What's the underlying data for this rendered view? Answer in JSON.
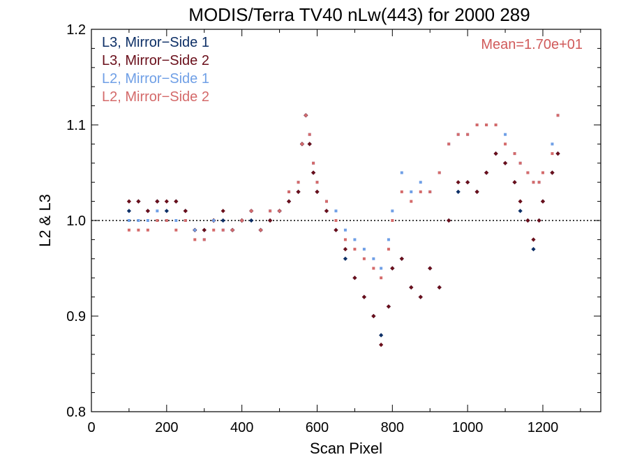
{
  "chart_data": {
    "type": "scatter",
    "title": "MODIS/Terra TV40 nLw(443) for 2000 289",
    "xlabel": "Scan Pixel",
    "ylabel": "L2 & L3",
    "xlim": [
      0,
      1354
    ],
    "ylim": [
      0.8,
      1.2
    ],
    "x_ticks": [
      "0",
      "200",
      "400",
      "600",
      "800",
      "1000",
      "1200"
    ],
    "y_ticks": [
      "0.8",
      "0.9",
      "1.0",
      "1.1",
      "1.2"
    ],
    "reference_line": 1.0,
    "annotation": "Mean=1.70e+01",
    "annotation_color": "#d05a5a",
    "legend_position": "top-left",
    "series": [
      {
        "name": "L3, Mirror−Side 1",
        "color": "#0d2f66",
        "x": [
          100,
          125,
          150,
          175,
          200,
          225,
          250,
          275,
          300,
          325,
          350,
          375,
          400,
          425,
          450,
          475,
          500,
          525,
          550,
          560,
          570,
          580,
          590,
          600,
          625,
          650,
          675,
          700,
          725,
          750,
          770,
          790,
          800,
          825,
          850,
          875,
          900,
          925,
          950,
          975,
          1000,
          1025,
          1050,
          1075,
          1100,
          1125,
          1140,
          1160,
          1175,
          1190,
          1200,
          1225,
          1240
        ],
        "y": [
          1.01,
          1.02,
          1.01,
          1.02,
          1.01,
          1.02,
          1.01,
          0.99,
          0.99,
          1.0,
          1.0,
          0.99,
          1.0,
          1.0,
          0.99,
          1.0,
          1.01,
          1.02,
          1.03,
          1.08,
          1.11,
          1.08,
          1.05,
          1.03,
          1.01,
          0.99,
          0.96,
          0.94,
          0.92,
          0.9,
          0.88,
          0.91,
          0.95,
          0.96,
          0.93,
          0.92,
          0.95,
          0.93,
          1.0,
          1.03,
          1.04,
          1.03,
          1.05,
          1.07,
          1.06,
          1.04,
          1.01,
          1.0,
          0.97,
          1.0,
          1.02,
          1.05,
          1.07
        ]
      },
      {
        "name": "L3, Mirror−Side 2",
        "color": "#6a0f1b",
        "x": [
          100,
          125,
          150,
          175,
          200,
          225,
          250,
          275,
          300,
          325,
          350,
          375,
          400,
          425,
          450,
          475,
          500,
          525,
          550,
          560,
          570,
          580,
          590,
          600,
          625,
          650,
          675,
          700,
          725,
          750,
          770,
          790,
          800,
          825,
          850,
          875,
          900,
          925,
          950,
          975,
          1000,
          1025,
          1050,
          1075,
          1100,
          1125,
          1140,
          1160,
          1175,
          1190,
          1200,
          1225,
          1240
        ],
        "y": [
          1.02,
          1.02,
          1.01,
          1.02,
          1.02,
          1.02,
          1.01,
          0.99,
          0.99,
          1.0,
          1.01,
          0.99,
          1.0,
          1.01,
          0.99,
          1.0,
          1.01,
          1.02,
          1.03,
          1.08,
          1.11,
          1.08,
          1.05,
          1.03,
          1.01,
          0.99,
          0.97,
          0.94,
          0.92,
          0.9,
          0.87,
          0.91,
          0.95,
          0.96,
          0.93,
          0.92,
          0.95,
          0.93,
          1.0,
          1.04,
          1.04,
          1.03,
          1.05,
          1.07,
          1.06,
          1.04,
          1.02,
          1.0,
          0.98,
          1.0,
          1.02,
          1.05,
          1.07
        ]
      },
      {
        "name": "L2, Mirror−Side 1",
        "color": "#6f9fe6",
        "x": [
          100,
          125,
          150,
          175,
          200,
          225,
          250,
          275,
          300,
          325,
          350,
          375,
          400,
          425,
          450,
          475,
          500,
          525,
          550,
          560,
          570,
          580,
          590,
          600,
          625,
          650,
          675,
          700,
          725,
          750,
          770,
          790,
          800,
          825,
          850,
          875,
          900,
          925,
          950,
          975,
          1000,
          1025,
          1050,
          1075,
          1100,
          1125,
          1140,
          1160,
          1175,
          1190,
          1200,
          1225,
          1240
        ],
        "y": [
          1.0,
          1.0,
          1.0,
          1.01,
          1.0,
          1.0,
          1.0,
          0.99,
          0.98,
          1.0,
          0.99,
          0.99,
          1.0,
          1.01,
          0.99,
          1.01,
          1.01,
          1.03,
          1.04,
          1.08,
          1.11,
          1.09,
          1.06,
          1.04,
          1.02,
          1.01,
          0.99,
          0.98,
          0.97,
          0.96,
          0.95,
          0.98,
          1.01,
          1.05,
          1.03,
          1.04,
          1.03,
          1.05,
          1.08,
          1.09,
          1.09,
          1.1,
          1.1,
          1.1,
          1.09,
          1.07,
          1.06,
          1.05,
          1.04,
          1.04,
          1.05,
          1.08,
          1.11
        ]
      },
      {
        "name": "L2, Mirror−Side 2",
        "color": "#d46a6a",
        "x": [
          100,
          125,
          150,
          175,
          200,
          225,
          250,
          275,
          300,
          325,
          350,
          375,
          400,
          425,
          450,
          475,
          500,
          525,
          550,
          560,
          570,
          580,
          590,
          600,
          625,
          650,
          675,
          700,
          725,
          750,
          770,
          790,
          800,
          825,
          850,
          875,
          900,
          925,
          950,
          975,
          1000,
          1025,
          1050,
          1075,
          1100,
          1125,
          1140,
          1160,
          1175,
          1190,
          1200,
          1225,
          1240
        ],
        "y": [
          0.99,
          0.99,
          0.99,
          1.0,
          1.0,
          0.99,
          1.0,
          0.98,
          0.98,
          0.99,
          0.99,
          0.99,
          1.0,
          1.01,
          0.99,
          1.01,
          1.01,
          1.03,
          1.04,
          1.08,
          1.11,
          1.09,
          1.06,
          1.04,
          1.02,
          1.0,
          0.98,
          0.97,
          0.96,
          0.95,
          0.94,
          0.97,
          1.0,
          1.03,
          1.02,
          1.03,
          1.03,
          1.05,
          1.08,
          1.09,
          1.09,
          1.1,
          1.1,
          1.1,
          1.08,
          1.07,
          1.06,
          1.05,
          1.04,
          1.04,
          1.05,
          1.07,
          1.11
        ]
      }
    ]
  }
}
